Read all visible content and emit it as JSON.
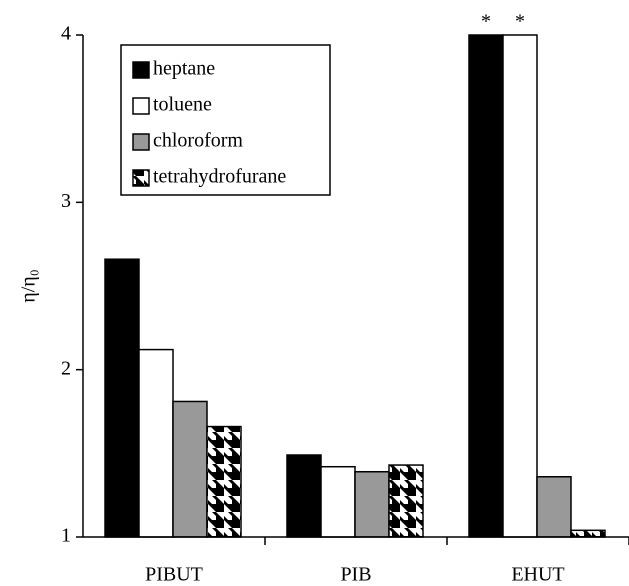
{
  "chart_data": {
    "type": "bar",
    "y_label": "η/η₀",
    "categories": [
      "PIBUT",
      "PIB",
      "EHUT"
    ],
    "series": [
      {
        "name": "heptane",
        "color": "#000000",
        "values": [
          2.66,
          1.49,
          4
        ]
      },
      {
        "name": "toluene",
        "color": "#ffffff",
        "values": [
          2.12,
          1.42,
          4
        ]
      },
      {
        "name": "chloroform",
        "color": "#999999",
        "values": [
          1.81,
          1.39,
          1.36
        ]
      },
      {
        "name": "tetrahydrofurane",
        "color": "pattern",
        "values": [
          1.66,
          1.43,
          1.04
        ]
      }
    ],
    "annotations": [
      "*",
      "*"
    ],
    "ylim": [
      1,
      4
    ],
    "yticks": [
      1,
      2,
      3,
      4
    ],
    "legend": "top-left"
  }
}
